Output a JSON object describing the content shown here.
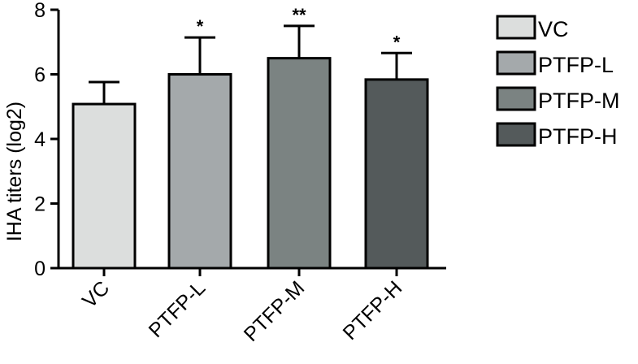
{
  "chart_data": {
    "type": "bar",
    "title": "",
    "xlabel": "",
    "ylabel": "IHA titers (log2)",
    "ylim": [
      0,
      8
    ],
    "yticks": [
      0,
      2,
      4,
      6,
      8
    ],
    "grid": false,
    "legend_position": "right",
    "categories": [
      "VC",
      "PTFP-L",
      "PTFP-M",
      "PTFP-H"
    ],
    "values": [
      5.08,
      6.0,
      6.5,
      5.84
    ],
    "errors": [
      0.68,
      1.14,
      1.0,
      0.82
    ],
    "significance": [
      "",
      "*",
      "**",
      "*"
    ],
    "colors": [
      "#dcdedd",
      "#a4a9ab",
      "#7b8382",
      "#545a5b"
    ],
    "legend": [
      "VC",
      "PTFP-L",
      "PTFP-M",
      "PTFP-H"
    ]
  }
}
